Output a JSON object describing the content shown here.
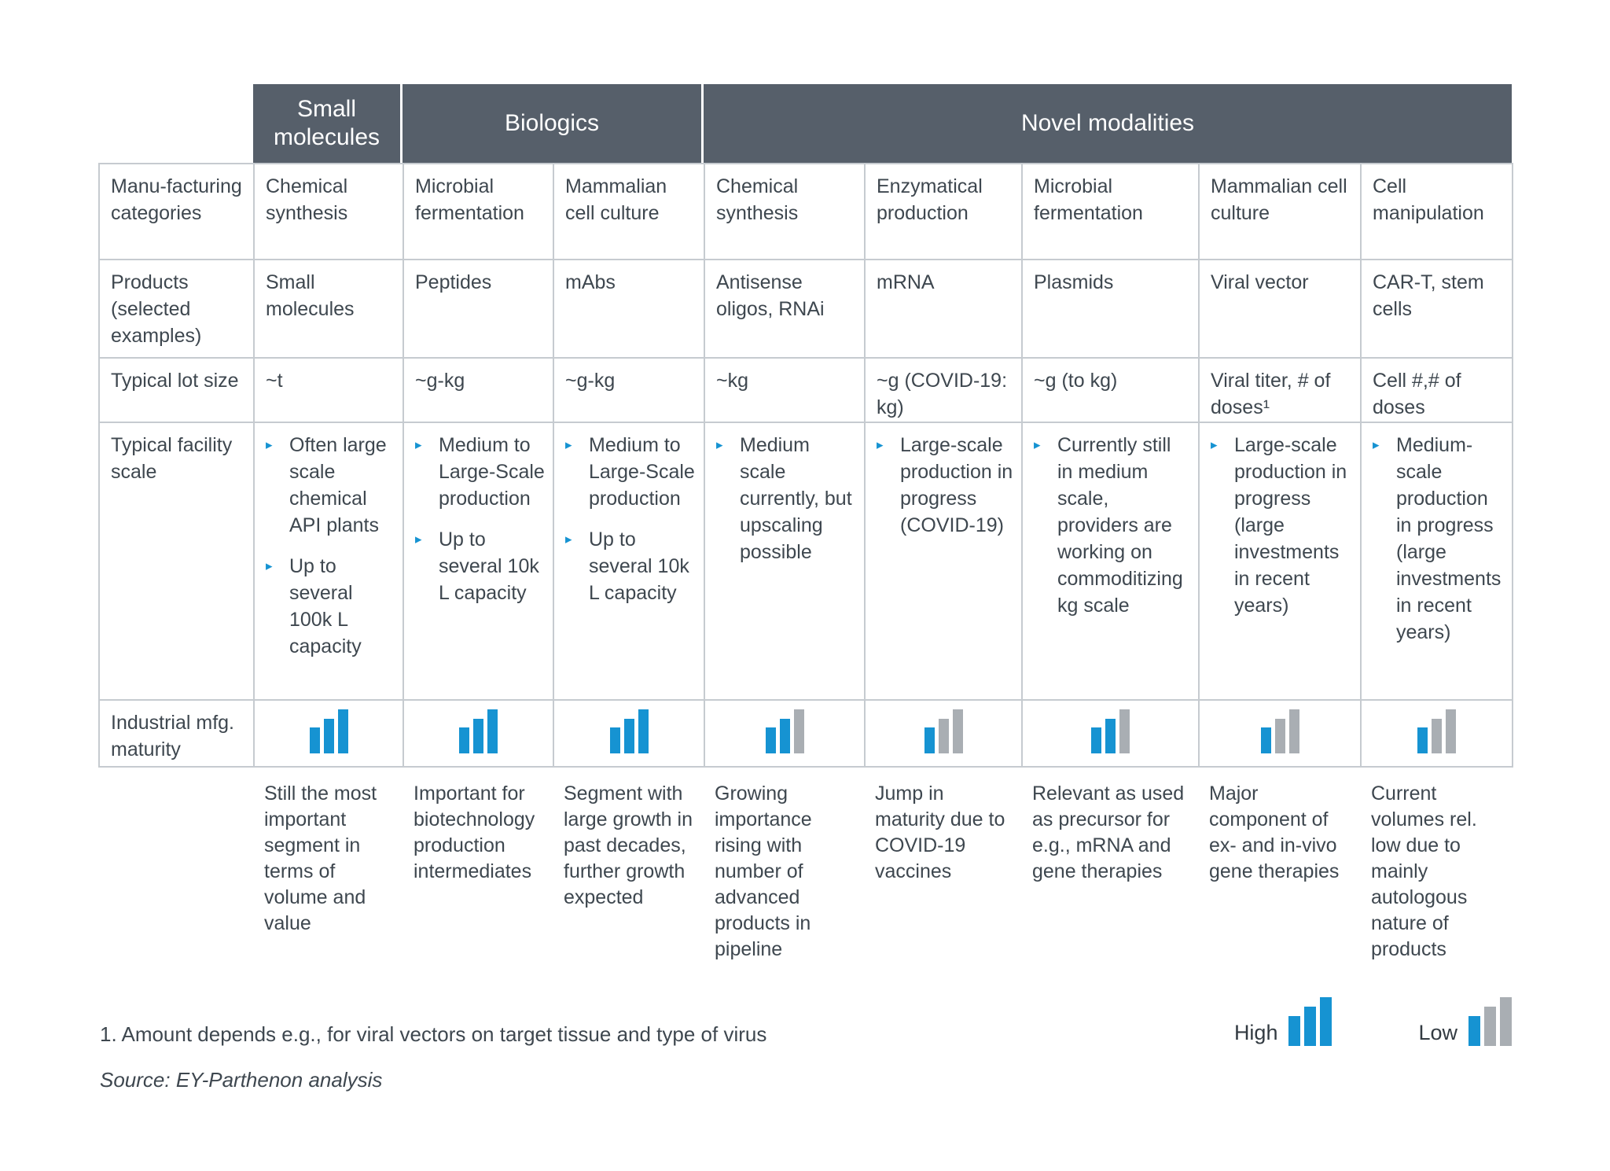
{
  "header": {
    "groups": [
      {
        "label": "Small molecules"
      },
      {
        "label": "Biologics"
      },
      {
        "label": "Novel modalities"
      }
    ]
  },
  "row_labels": {
    "manufacturing": "Manu-facturing categories",
    "products": "Products (selected examples)",
    "lot_size": "Typical lot size",
    "facility_scale": "Typical facility scale",
    "maturity": "Industrial mfg. maturity"
  },
  "columns": [
    {
      "group": "Small molecules",
      "mfg": "Chemical synthesis",
      "product": "Small molecules",
      "lot": "~t",
      "facility": [
        "Often large scale chemical API plants",
        "Up to several 100k L capacity"
      ],
      "maturity": [
        "blue",
        "blue",
        "blue"
      ],
      "note": "Still the most important segment in terms of volume and value"
    },
    {
      "group": "Biologics",
      "mfg": "Microbial fermentation",
      "product": "Peptides",
      "lot": "~g-kg",
      "facility": [
        "Medium to Large-Scale production",
        "Up to several 10k L capacity"
      ],
      "maturity": [
        "blue",
        "blue",
        "blue"
      ],
      "note": "Important for biotechnology production intermediates"
    },
    {
      "group": "Biologics",
      "mfg": "Mammalian cell culture",
      "product": "mAbs",
      "lot": "~g-kg",
      "facility": [
        "Medium to Large-Scale production",
        "Up to several 10k L capacity"
      ],
      "maturity": [
        "blue",
        "blue",
        "blue"
      ],
      "note": "Segment with large growth in past decades, further growth expected"
    },
    {
      "group": "Novel modalities",
      "mfg": "Chemical synthesis",
      "product": "Antisense oligos, RNAi",
      "lot": "~kg",
      "facility": [
        "Medium scale currently, but upscaling possible"
      ],
      "maturity": [
        "blue",
        "blue",
        "gray"
      ],
      "note": "Growing importance rising with number of advanced products in pipeline"
    },
    {
      "group": "Novel modalities",
      "mfg": "Enzymatical production",
      "product": "mRNA",
      "lot": "~g (COVID-19: kg)",
      "facility": [
        "Large-scale production in progress (COVID-19)"
      ],
      "maturity": [
        "blue",
        "gray",
        "gray"
      ],
      "note": "Jump in maturity due to COVID-19 vaccines"
    },
    {
      "group": "Novel modalities",
      "mfg": "Microbial fermentation",
      "product": "Plasmids",
      "lot": "~g (to kg)",
      "facility": [
        "Currently still in medium scale, providers are working on commoditizing kg scale"
      ],
      "maturity": [
        "blue",
        "blue",
        "gray"
      ],
      "note": "Relevant as used as precursor for e.g., mRNA and gene therapies"
    },
    {
      "group": "Novel modalities",
      "mfg": "Mammalian cell culture",
      "product": "Viral vector",
      "lot": "Viral titer, # of doses¹",
      "facility": [
        "Large-scale production in progress (large investments in recent years)"
      ],
      "maturity": [
        "blue",
        "gray",
        "gray"
      ],
      "note": "Major component of ex- and in-vivo gene therapies"
    },
    {
      "group": "Novel modalities",
      "mfg": "Cell manipulation",
      "product": "CAR-T, stem cells",
      "lot": "Cell #,# of doses",
      "facility": [
        "Medium-scale production in progress (large investments in recent years)"
      ],
      "maturity": [
        "blue",
        "gray",
        "gray"
      ],
      "note": "Current volumes rel. low due to mainly autologous nature of products"
    }
  ],
  "legend": {
    "high_label": "High",
    "high_bars": [
      "blue",
      "blue",
      "blue"
    ],
    "low_label": "Low",
    "low_bars": [
      "blue",
      "gray",
      "gray"
    ]
  },
  "footnote": "1. Amount depends e.g., for viral vectors on target tissue and type of virus",
  "source": "Source: EY-Parthenon analysis",
  "colors": {
    "accent_blue": "#1693d2",
    "bar_gray": "#a9aeb3",
    "header_bg": "#565f6a",
    "grid_line": "#c6cbd0"
  }
}
